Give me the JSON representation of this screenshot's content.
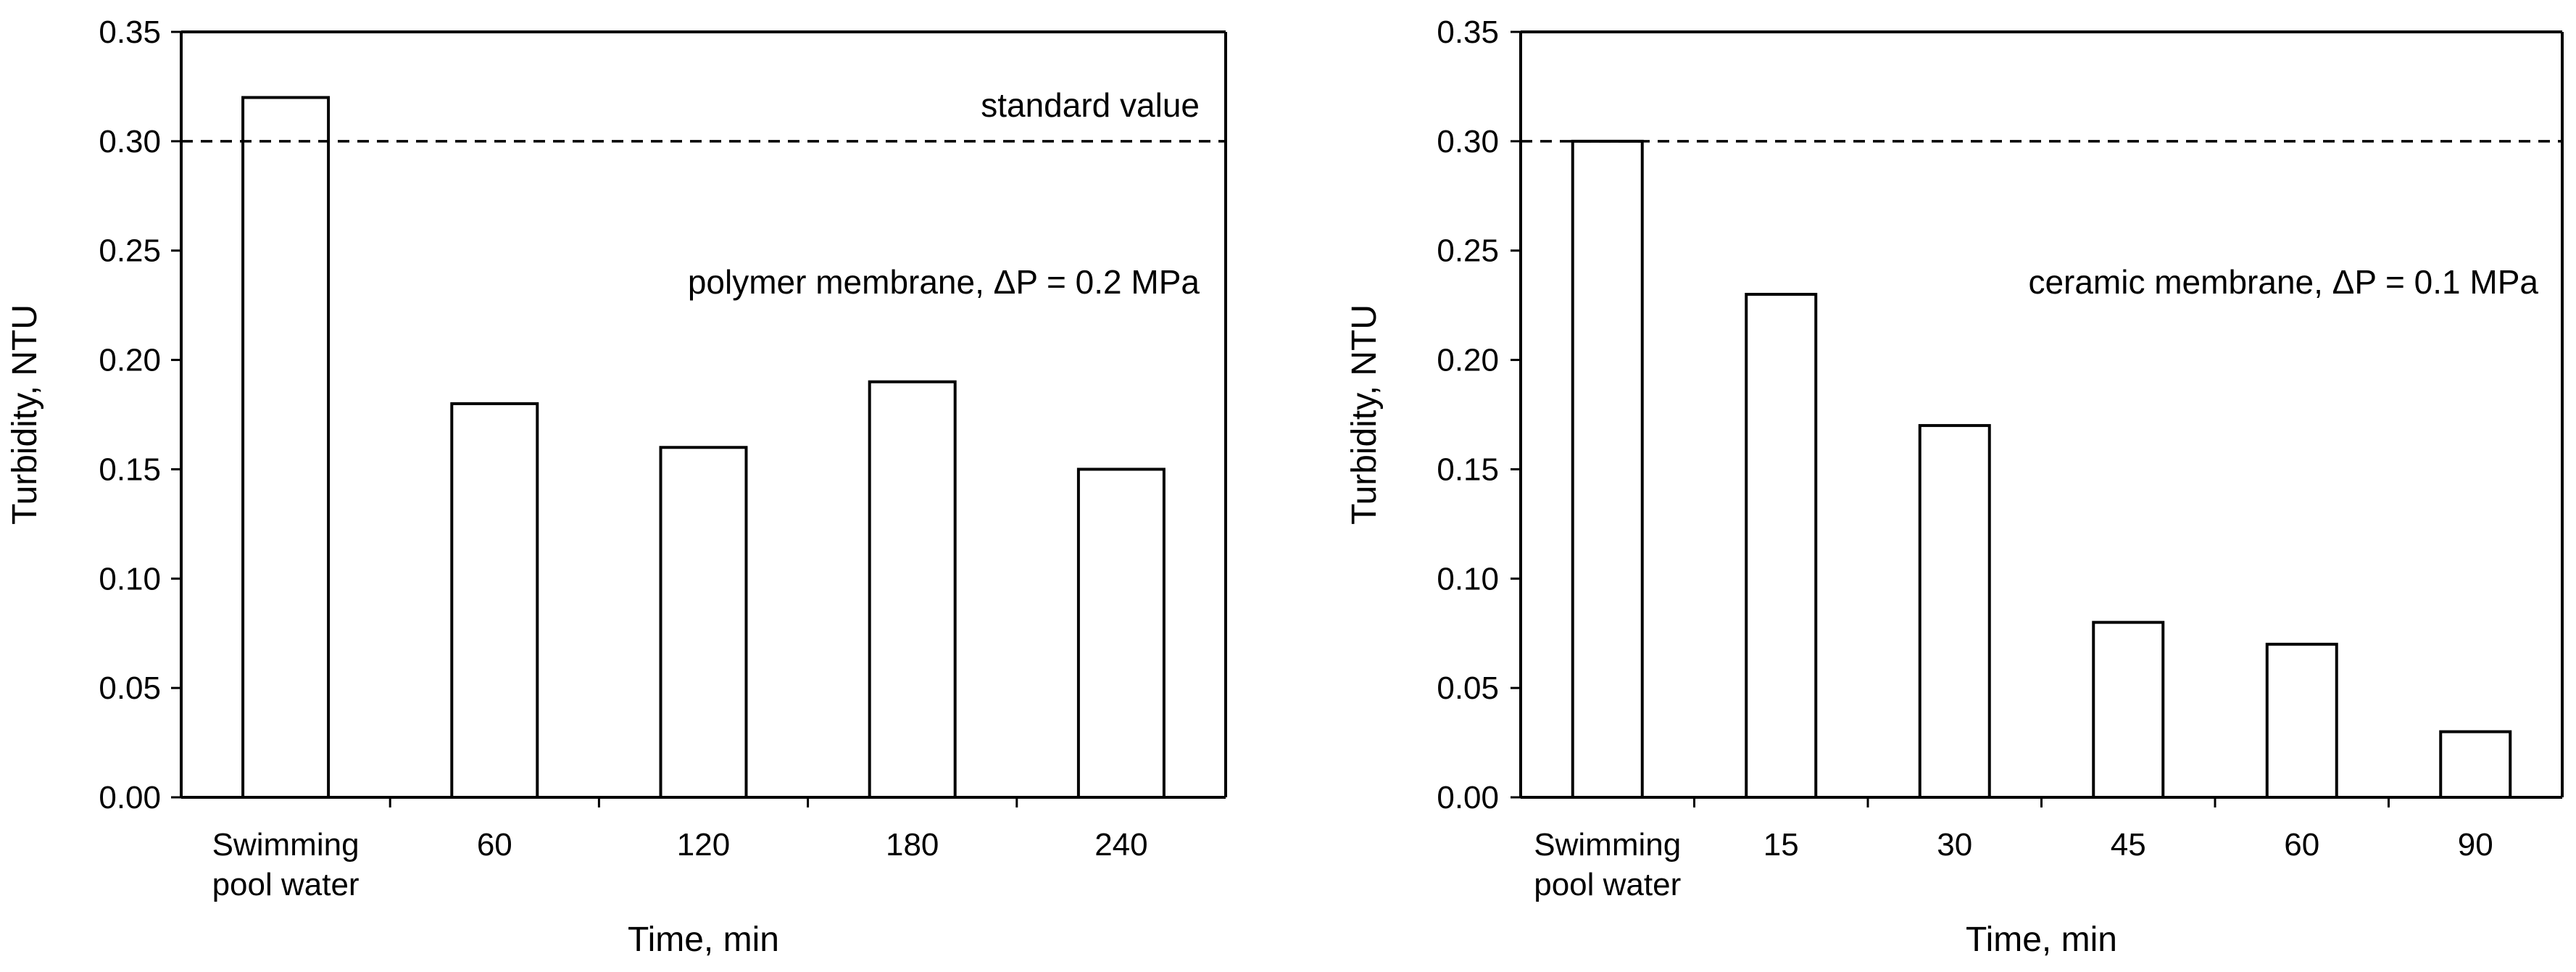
{
  "chart_data": [
    {
      "type": "bar",
      "panel": "left",
      "title": "",
      "categories": [
        [
          "Swimming",
          "pool water"
        ],
        [
          "60"
        ],
        [
          "120"
        ],
        [
          "180"
        ],
        [
          "240"
        ]
      ],
      "values": [
        0.32,
        0.18,
        0.16,
        0.19,
        0.15
      ],
      "xlabel": "Time, min",
      "ylabel": "Turbidity, NTU",
      "ylim": [
        0,
        0.35
      ],
      "yticks": [
        "0.00",
        "0.05",
        "0.10",
        "0.15",
        "0.20",
        "0.25",
        "0.30",
        "0.35"
      ],
      "reference_line": {
        "value": 0.3,
        "style": "dashed",
        "label": "standard value"
      },
      "annotation": {
        "prefix": "polymer membrane, ",
        "delta": "Δ",
        "suffix": "P = 0.2 MPa"
      },
      "grid": false,
      "bar_fill": "#ffffff",
      "bar_stroke": "#000000"
    },
    {
      "type": "bar",
      "panel": "right",
      "title": "",
      "categories": [
        [
          "Swimming",
          "pool water"
        ],
        [
          "15"
        ],
        [
          "30"
        ],
        [
          "45"
        ],
        [
          "60"
        ],
        [
          "90"
        ]
      ],
      "values": [
        0.3,
        0.23,
        0.17,
        0.08,
        0.07,
        0.03
      ],
      "xlabel": "Time, min",
      "ylabel": "Turbidity, NTU",
      "ylim": [
        0,
        0.35
      ],
      "yticks": [
        "0.00",
        "0.05",
        "0.10",
        "0.15",
        "0.20",
        "0.25",
        "0.30",
        "0.35"
      ],
      "reference_line": {
        "value": 0.3,
        "style": "dashed",
        "label": ""
      },
      "annotation": {
        "prefix": "ceramic membrane, ",
        "delta": "Δ",
        "suffix": "P = 0.1 MPa"
      },
      "grid": false,
      "bar_fill": "#ffffff",
      "bar_stroke": "#000000"
    }
  ]
}
